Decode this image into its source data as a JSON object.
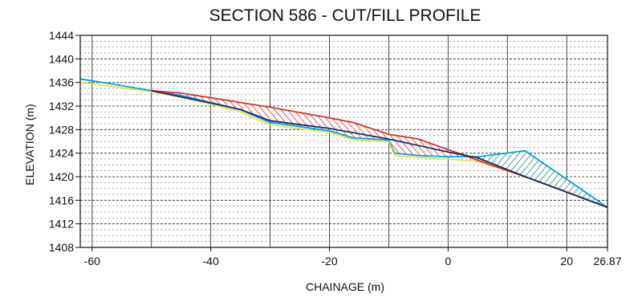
{
  "chart_data": {
    "type": "area",
    "title": "SECTION 586 - CUT/FILL PROFILE",
    "xlabel": "CHAINAGE (m)",
    "ylabel": "ELEVATION (m)",
    "xlim": [
      -62,
      26.87
    ],
    "ylim": [
      1408,
      1444
    ],
    "x_ticks": [
      -60,
      -40,
      -20,
      0,
      20,
      26.87
    ],
    "x_tick_labels": [
      "-60",
      "-40",
      "-20",
      "0",
      "20",
      "26.87"
    ],
    "y_ticks": [
      1408,
      1412,
      1416,
      1420,
      1424,
      1428,
      1432,
      1436,
      1440,
      1444
    ],
    "y_tick_labels": [
      "1408",
      "1412",
      "1416",
      "1420",
      "1424",
      "1428",
      "1432",
      "1436",
      "1440",
      "1444"
    ],
    "grid": true,
    "series": [
      {
        "color": "#00a0e0",
        "points": [
          [
            -62,
            1436.6
          ],
          [
            -57,
            1435.8
          ],
          [
            -50,
            1434.6
          ],
          [
            -45,
            1433.8
          ],
          [
            -40,
            1432.6
          ],
          [
            -35,
            1431.4
          ],
          [
            -30,
            1429.2
          ],
          [
            -20,
            1427.8
          ],
          [
            -16,
            1426.6
          ],
          [
            -10,
            1426.2
          ],
          [
            -9,
            1424.0
          ],
          [
            -5,
            1423.6
          ],
          [
            0,
            1423.4
          ],
          [
            5,
            1423.4
          ],
          [
            13,
            1424.4
          ],
          [
            26.87,
            1414.8
          ]
        ]
      },
      {
        "color": "#e8e04a",
        "points": [
          [
            -62,
            1436.0
          ],
          [
            -57,
            1435.4
          ],
          [
            -50,
            1434.4
          ],
          [
            -45,
            1433.5
          ],
          [
            -40,
            1432.3
          ],
          [
            -35,
            1431.0
          ],
          [
            -30,
            1428.8
          ],
          [
            -20,
            1427.5
          ],
          [
            -16,
            1426.3
          ],
          [
            -10,
            1425.9
          ],
          [
            -9,
            1423.6
          ],
          [
            -5,
            1423.3
          ],
          [
            0,
            1423.0
          ],
          [
            5,
            1422.6
          ],
          [
            13,
            1420.0
          ],
          [
            26.87,
            1414.9
          ]
        ]
      },
      {
        "color": "#e0302a",
        "points": [
          [
            -50,
            1434.6
          ],
          [
            -45,
            1434.2
          ],
          [
            -40,
            1433.4
          ],
          [
            -35,
            1432.6
          ],
          [
            -30,
            1431.8
          ],
          [
            -20,
            1430.0
          ],
          [
            -16,
            1429.2
          ],
          [
            -10,
            1427.2
          ],
          [
            -5,
            1426.4
          ],
          [
            0,
            1424.6
          ],
          [
            5,
            1422.8
          ],
          [
            13,
            1420.0
          ],
          [
            26.87,
            1414.8
          ]
        ]
      },
      {
        "color": "#1a2a6a",
        "points": [
          [
            -50,
            1434.6
          ],
          [
            -40,
            1432.5
          ],
          [
            -35,
            1431.4
          ],
          [
            -30,
            1429.5
          ],
          [
            -20,
            1428.2
          ],
          [
            -10,
            1426.4
          ],
          [
            0,
            1424.2
          ],
          [
            5,
            1423.2
          ],
          [
            13,
            1420.0
          ],
          [
            26.87,
            1414.8
          ]
        ]
      }
    ],
    "regions": [
      {
        "kind": "cut",
        "fill_color": "#e0302a",
        "upper": [
          [
            -50,
            1434.6
          ],
          [
            -45,
            1434.2
          ],
          [
            -40,
            1433.4
          ],
          [
            -35,
            1432.6
          ],
          [
            -30,
            1431.8
          ],
          [
            -20,
            1430.0
          ],
          [
            -16,
            1429.2
          ],
          [
            -10,
            1427.2
          ],
          [
            -5,
            1426.4
          ],
          [
            0,
            1424.6
          ],
          [
            4,
            1423.4
          ]
        ],
        "lower": [
          [
            -50,
            1434.6
          ],
          [
            -45,
            1433.8
          ],
          [
            -40,
            1432.6
          ],
          [
            -35,
            1431.4
          ],
          [
            -30,
            1429.2
          ],
          [
            -20,
            1427.8
          ],
          [
            -16,
            1426.6
          ],
          [
            -10,
            1426.2
          ],
          [
            -9,
            1424.0
          ],
          [
            -5,
            1423.6
          ],
          [
            0,
            1423.4
          ],
          [
            4,
            1423.4
          ]
        ]
      },
      {
        "kind": "fill",
        "fill_color": "#1a8a7a",
        "upper": [
          [
            5,
            1423.4
          ],
          [
            13,
            1424.4
          ],
          [
            26.87,
            1414.8
          ]
        ],
        "lower": [
          [
            5,
            1422.8
          ],
          [
            13,
            1420.0
          ],
          [
            26.87,
            1414.8
          ]
        ]
      }
    ]
  }
}
